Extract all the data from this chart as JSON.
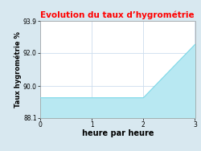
{
  "title": "Evolution du taux d’hygrométrie",
  "title_color": "#ff0000",
  "xlabel": "heure par heure",
  "ylabel": "Taux hygrométrie %",
  "x": [
    0,
    2,
    3
  ],
  "y": [
    89.3,
    89.3,
    92.5
  ],
  "xlim": [
    0,
    3
  ],
  "ylim": [
    88.1,
    93.9
  ],
  "xticks": [
    0,
    1,
    2,
    3
  ],
  "yticks": [
    88.1,
    90.0,
    92.0,
    93.9
  ],
  "line_color": "#7dd8e8",
  "fill_color": "#b8e8f2",
  "fill_alpha": 1.0,
  "bg_color": "#d8e8f0",
  "plot_bg_color": "#ffffff",
  "grid_color": "#ccddee",
  "title_fontsize": 7.5,
  "label_fontsize": 6.0,
  "tick_fontsize": 5.5,
  "xlabel_fontsize": 7.0
}
